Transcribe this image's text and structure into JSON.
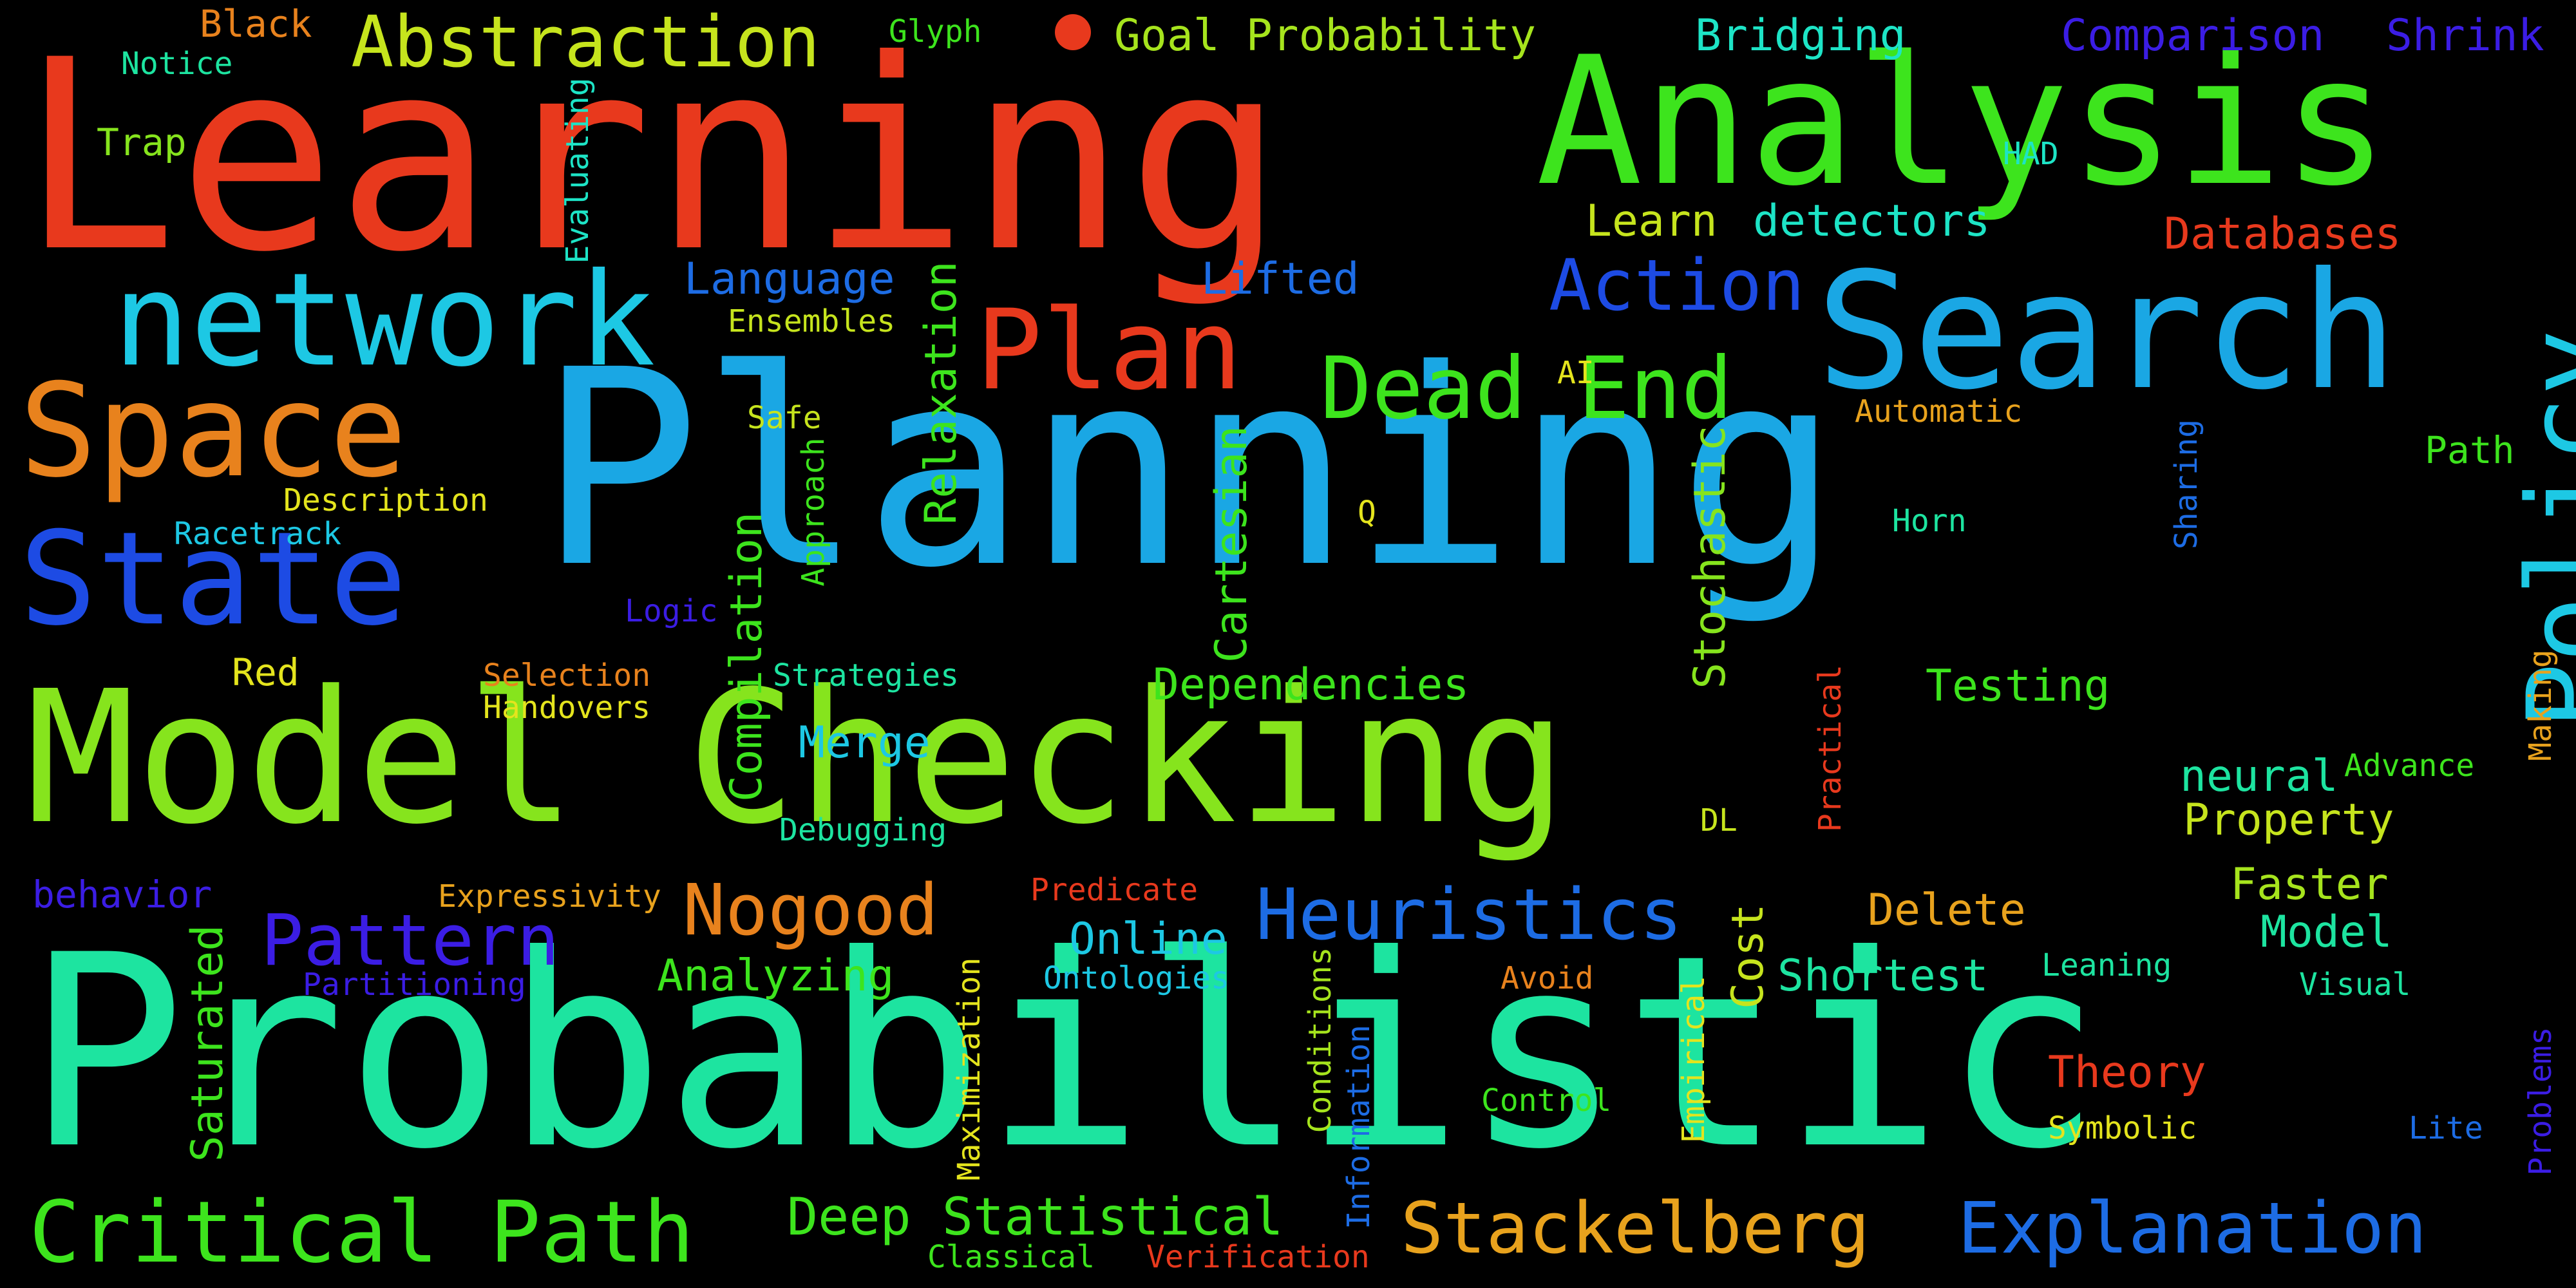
{
  "words": [
    {
      "text": "Planning",
      "color": "#1aa7e4",
      "vertical": false
    },
    {
      "text": "Probabilistic",
      "color": "#1de4a0",
      "vertical": false
    },
    {
      "text": "Learning",
      "color": "#e8391d",
      "vertical": false
    },
    {
      "text": "Model Checking",
      "color": "#86e41d",
      "vertical": false
    },
    {
      "text": "Analysis",
      "color": "#3de41d",
      "vertical": false
    },
    {
      "text": "Search",
      "color": "#1aa7e4",
      "vertical": false
    },
    {
      "text": "network",
      "color": "#1dc8e4",
      "vertical": false
    },
    {
      "text": "Space",
      "color": "#e8821d",
      "vertical": false
    },
    {
      "text": "State",
      "color": "#1d4be4",
      "vertical": false
    },
    {
      "text": "Plan",
      "color": "#e8391d",
      "vertical": false
    },
    {
      "text": "Dead End",
      "color": "#3de41d",
      "vertical": false
    },
    {
      "text": "Policy",
      "color": "#1dc8e4",
      "vertical": true
    },
    {
      "text": "Critical Path",
      "color": "#3de41d",
      "vertical": false
    },
    {
      "text": "Stackelberg",
      "color": "#e8a21d",
      "vertical": false
    },
    {
      "text": "Explanation",
      "color": "#1d6ce4",
      "vertical": false
    },
    {
      "text": "Heuristics",
      "color": "#1d6ce4",
      "vertical": false
    },
    {
      "text": "Abstraction",
      "color": "#c6e41d",
      "vertical": false
    },
    {
      "text": "Action",
      "color": "#1d4be4",
      "vertical": false
    },
    {
      "text": "Nogood",
      "color": "#e8821d",
      "vertical": false
    },
    {
      "text": "Pattern",
      "color": "#3b1de4",
      "vertical": false
    },
    {
      "text": "Deep Statistical",
      "color": "#3de41d",
      "vertical": false
    },
    {
      "text": "Goal Probability",
      "color": "#a6e41d",
      "vertical": false
    },
    {
      "text": "Bridging",
      "color": "#1de4c6",
      "vertical": false
    },
    {
      "text": "Comparison",
      "color": "#3b1de4",
      "vertical": false
    },
    {
      "text": "Shrink",
      "color": "#3b1de4",
      "vertical": false
    },
    {
      "text": "Learn",
      "color": "#c6e41d",
      "vertical": false
    },
    {
      "text": "detectors",
      "color": "#1de4c6",
      "vertical": false
    },
    {
      "text": "Databases",
      "color": "#e8391d",
      "vertical": false
    },
    {
      "text": "Language",
      "color": "#1d6ce4",
      "vertical": false
    },
    {
      "text": "Lifted",
      "color": "#1d6ce4",
      "vertical": false
    },
    {
      "text": "Relaxation",
      "color": "#3de41d",
      "vertical": true
    },
    {
      "text": "Cartesian",
      "color": "#3de41d",
      "vertical": true
    },
    {
      "text": "Stochastic",
      "color": "#86e41d",
      "vertical": true
    },
    {
      "text": "Compilation",
      "color": "#3de41d",
      "vertical": true
    },
    {
      "text": "Dependencies",
      "color": "#3de41d",
      "vertical": false
    },
    {
      "text": "Testing",
      "color": "#3de41d",
      "vertical": false
    },
    {
      "text": "Merge",
      "color": "#1dc8e4",
      "vertical": false
    },
    {
      "text": "neural",
      "color": "#1de4a0",
      "vertical": false
    },
    {
      "text": "Property",
      "color": "#c6e41d",
      "vertical": false
    },
    {
      "text": "Faster",
      "color": "#a6e41d",
      "vertical": false
    },
    {
      "text": "Model",
      "color": "#1de4a0",
      "vertical": false
    },
    {
      "text": "Delete",
      "color": "#e8a21d",
      "vertical": false
    },
    {
      "text": "Online",
      "color": "#1dc8e4",
      "vertical": false
    },
    {
      "text": "Shortest",
      "color": "#1de4a0",
      "vertical": false
    },
    {
      "text": "Cost",
      "color": "#c6e41d",
      "vertical": true
    },
    {
      "text": "Analyzing",
      "color": "#3de41d",
      "vertical": false
    },
    {
      "text": "Saturated",
      "color": "#3de41d",
      "vertical": true
    },
    {
      "text": "Theory",
      "color": "#e8391d",
      "vertical": false
    },
    {
      "text": "behavior",
      "color": "#3b1de4",
      "vertical": false
    },
    {
      "text": "Red",
      "color": "#e4e41d",
      "vertical": false
    },
    {
      "text": "Path",
      "color": "#3de41d",
      "vertical": false
    },
    {
      "text": "Trap",
      "color": "#86e41d",
      "vertical": false
    },
    {
      "text": "Black",
      "color": "#e8821d",
      "vertical": false
    },
    {
      "text": "Notice",
      "color": "#1de4a0",
      "vertical": false
    },
    {
      "text": "Glyph",
      "color": "#3de41d",
      "vertical": false
    },
    {
      "text": "HAD",
      "color": "#1de4c6",
      "vertical": false
    },
    {
      "text": "Evaluating",
      "color": "#1de4c6",
      "vertical": true
    },
    {
      "text": "Ensembles",
      "color": "#c6e41d",
      "vertical": false
    },
    {
      "text": "AI",
      "color": "#e4e41d",
      "vertical": false
    },
    {
      "text": "Automatic",
      "color": "#e8a21d",
      "vertical": false
    },
    {
      "text": "Safe",
      "color": "#c6e41d",
      "vertical": false
    },
    {
      "text": "Description",
      "color": "#e4e41d",
      "vertical": false
    },
    {
      "text": "Racetrack",
      "color": "#1dc8e4",
      "vertical": false
    },
    {
      "text": "Approach",
      "color": "#3de41d",
      "vertical": true
    },
    {
      "text": "Logic",
      "color": "#3b1de4",
      "vertical": false
    },
    {
      "text": "Q",
      "color": "#e4e41d",
      "vertical": false
    },
    {
      "text": "Horn",
      "color": "#1de4a0",
      "vertical": false
    },
    {
      "text": "Sharing",
      "color": "#1d6ce4",
      "vertical": true
    },
    {
      "text": "Making",
      "color": "#e8a21d",
      "vertical": true
    },
    {
      "text": "Selection",
      "color": "#e8821d",
      "vertical": false
    },
    {
      "text": "Strategies",
      "color": "#1de4a0",
      "vertical": false
    },
    {
      "text": "Handovers",
      "color": "#e4e41d",
      "vertical": false
    },
    {
      "text": "Practical",
      "color": "#e8391d",
      "vertical": true
    },
    {
      "text": "Advance",
      "color": "#3de41d",
      "vertical": false
    },
    {
      "text": "Debugging",
      "color": "#1de4a0",
      "vertical": false
    },
    {
      "text": "DL",
      "color": "#c6e41d",
      "vertical": false
    },
    {
      "text": "Expressivity",
      "color": "#e8a21d",
      "vertical": false
    },
    {
      "text": "Predicate",
      "color": "#e8391d",
      "vertical": false
    },
    {
      "text": "Partitioning",
      "color": "#3b1de4",
      "vertical": false
    },
    {
      "text": "Ontologies",
      "color": "#1dc8e4",
      "vertical": false
    },
    {
      "text": "Avoid",
      "color": "#e8821d",
      "vertical": false
    },
    {
      "text": "Leaning",
      "color": "#1de4a0",
      "vertical": false
    },
    {
      "text": "Visual",
      "color": "#1de4a0",
      "vertical": false
    },
    {
      "text": "Maximization",
      "color": "#e4e41d",
      "vertical": true
    },
    {
      "text": "Conditions",
      "color": "#a6e41d",
      "vertical": true
    },
    {
      "text": "Information",
      "color": "#1d6ce4",
      "vertical": true
    },
    {
      "text": "Control",
      "color": "#3de41d",
      "vertical": false
    },
    {
      "text": "Empirical",
      "color": "#e4e41d",
      "vertical": true
    },
    {
      "text": "Symbolic",
      "color": "#e4e41d",
      "vertical": false
    },
    {
      "text": "Lite",
      "color": "#1d6ce4",
      "vertical": false
    },
    {
      "text": "Problems",
      "color": "#3b1de4",
      "vertical": true
    },
    {
      "text": "Classical",
      "color": "#3de41d",
      "vertical": false
    },
    {
      "text": "Verification",
      "color": "#e8391d",
      "vertical": false
    }
  ]
}
